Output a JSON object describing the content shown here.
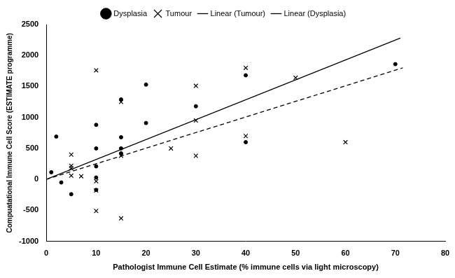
{
  "chart_data": {
    "type": "scatter",
    "x_label": "Pathologist Immune Cell Estimate (% immune cells via light microscopy)",
    "y_label": "Compuatational Immune Cell Score (ESTIMATE programme)",
    "xlim": [
      0,
      80
    ],
    "xticks": [
      0,
      10,
      20,
      30,
      40,
      50,
      60,
      70,
      80
    ],
    "ylim": [
      -1000,
      2500
    ],
    "yticks": [
      -1000,
      -500,
      0,
      500,
      1000,
      1500,
      2000,
      2500
    ],
    "grid": false,
    "legend": "top",
    "series": [
      {
        "name": "Dysplasia",
        "type": "scatter",
        "marker": "circle",
        "color": "#000000",
        "x": [
          1,
          2,
          3,
          5,
          10,
          10,
          10,
          10,
          10,
          15,
          15,
          15,
          15,
          20,
          20,
          30,
          40,
          40,
          70
        ],
        "values": [
          115,
          690,
          -50,
          -240,
          880,
          500,
          210,
          30,
          -170,
          1290,
          680,
          500,
          420,
          1530,
          910,
          1180,
          1680,
          600,
          1860
        ]
      },
      {
        "name": "Tumour",
        "type": "scatter",
        "marker": "cross",
        "color": "#000000",
        "x": [
          5,
          5,
          5,
          5,
          7,
          10,
          10,
          10,
          10,
          15,
          15,
          15,
          25,
          30,
          30,
          30,
          40,
          40,
          50,
          60
        ],
        "values": [
          400,
          220,
          180,
          60,
          50,
          1760,
          -30,
          -180,
          -510,
          1250,
          380,
          -630,
          500,
          1510,
          950,
          380,
          1800,
          700,
          1640,
          600
        ]
      },
      {
        "name": "Linear (Tumour)",
        "type": "line",
        "line_style": "dashed",
        "color": "#000000",
        "x": [
          0,
          71.5
        ],
        "values": [
          0,
          1800
        ]
      },
      {
        "name": "Linear (Dysplasia)",
        "type": "line",
        "line_style": "solid",
        "color": "#000000",
        "x": [
          0,
          71
        ],
        "values": [
          0,
          2280
        ]
      }
    ]
  }
}
